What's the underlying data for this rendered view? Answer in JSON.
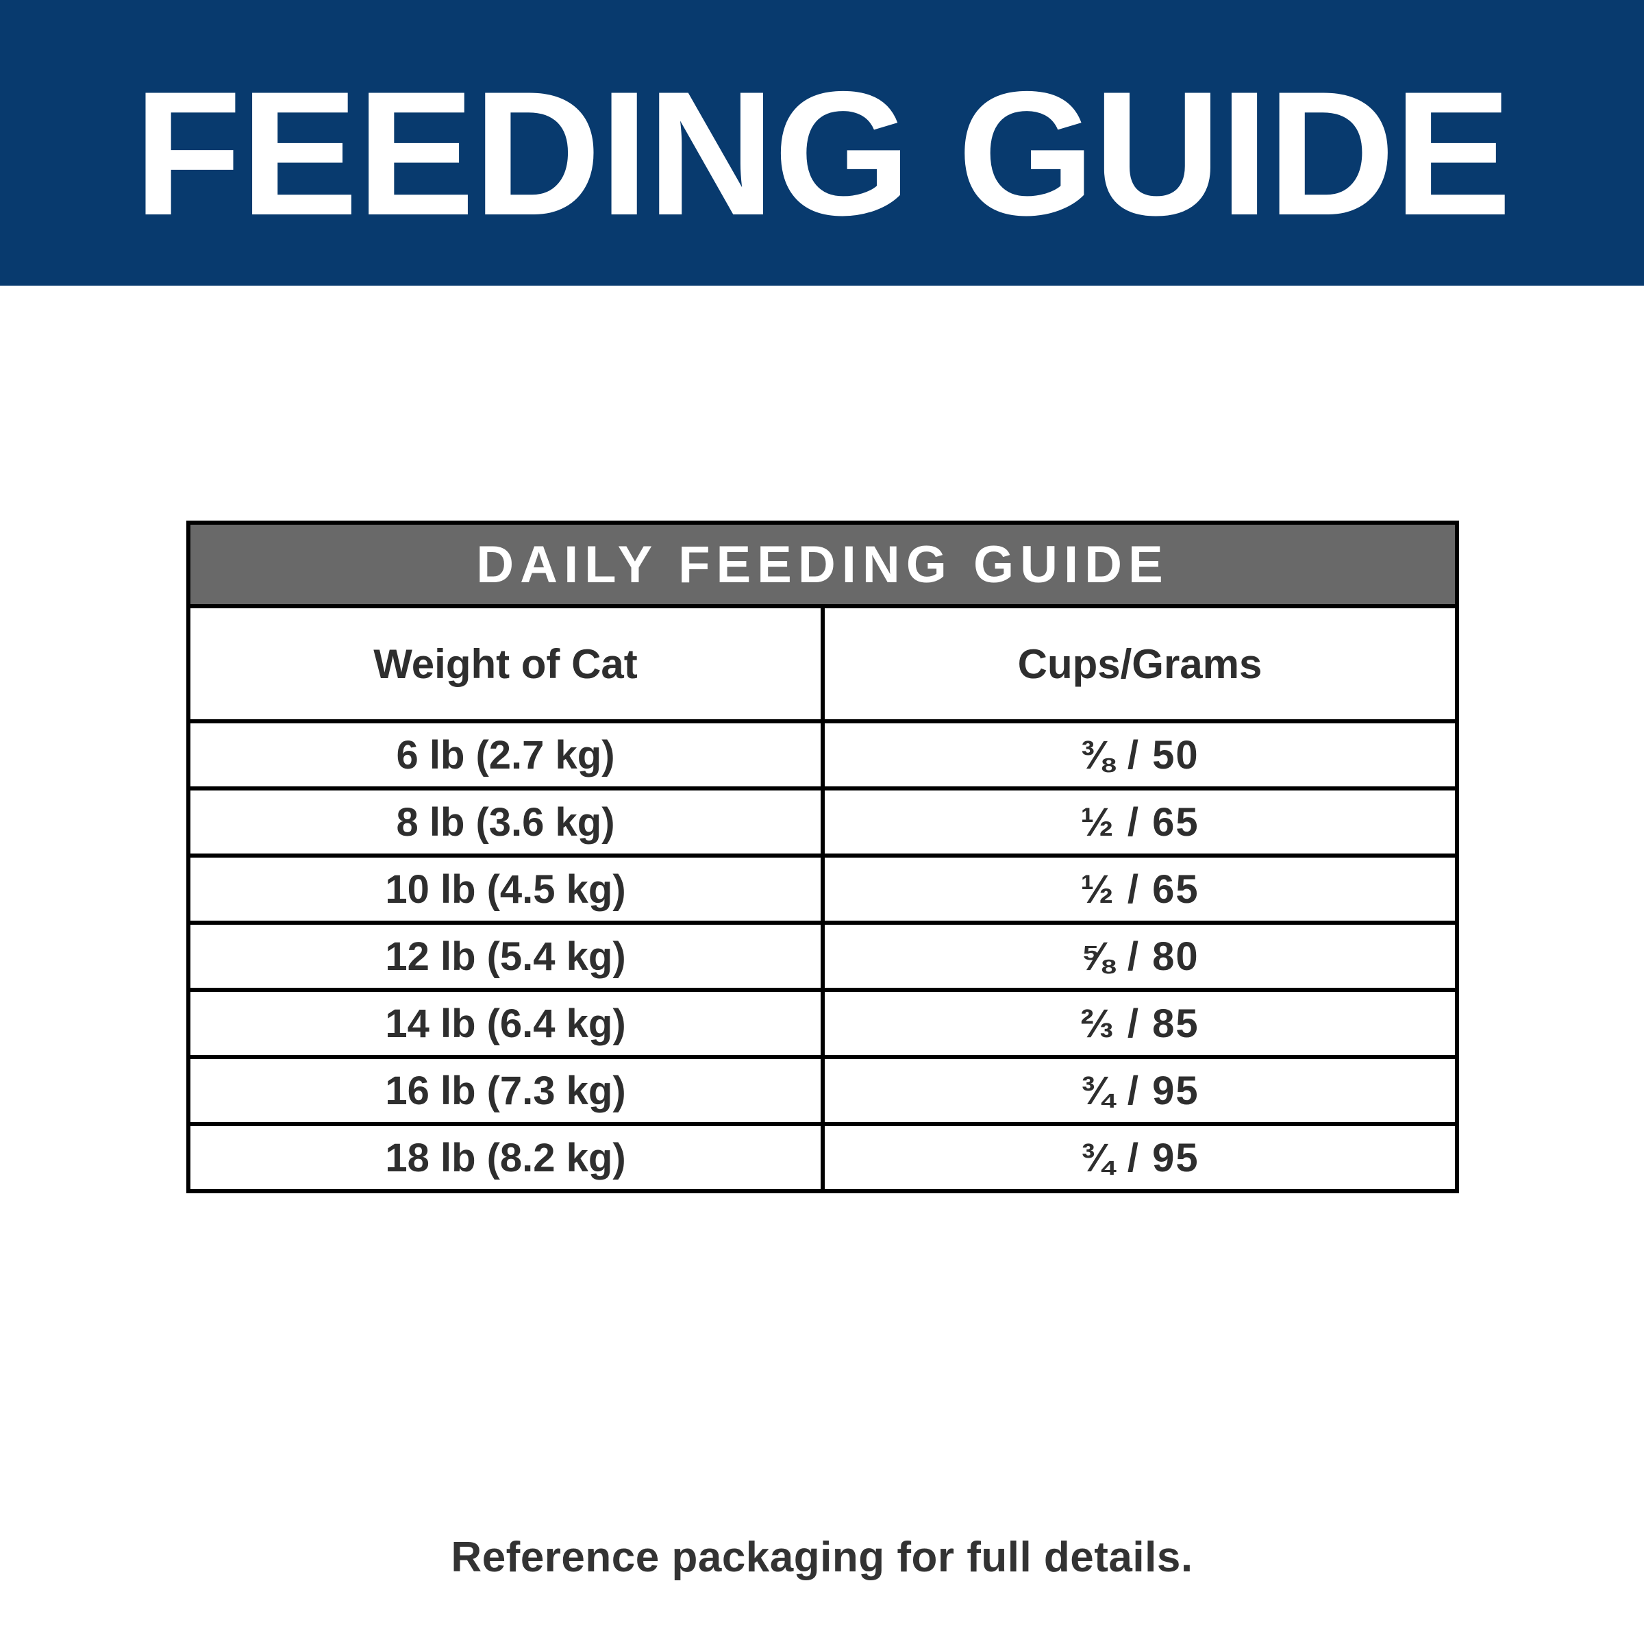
{
  "banner": {
    "title": "FEEDING GUIDE",
    "bg_color": "#083A6E",
    "text_color": "#FFFFFF"
  },
  "table": {
    "title": "DAILY FEEDING GUIDE",
    "title_bg_color": "#696969",
    "title_text_color": "#FFFFFF",
    "border_color": "#000000",
    "columns": [
      "Weight of Cat",
      "Cups/Grams"
    ],
    "rows": [
      {
        "weight": "6 lb (2.7 kg)",
        "amount": "⅜ / 50"
      },
      {
        "weight": "8 lb (3.6 kg)",
        "amount": "½ / 65"
      },
      {
        "weight": "10 lb (4.5 kg)",
        "amount": "½ / 65"
      },
      {
        "weight": "12 lb (5.4 kg)",
        "amount": "⅝ / 80"
      },
      {
        "weight": "14 lb (6.4 kg)",
        "amount": "⅔ / 85"
      },
      {
        "weight": "16 lb (7.3 kg)",
        "amount": "¾ / 95"
      },
      {
        "weight": "18 lb (8.2 kg)",
        "amount": "¾ / 95"
      }
    ]
  },
  "footer": {
    "note": "Reference packaging for full details."
  }
}
